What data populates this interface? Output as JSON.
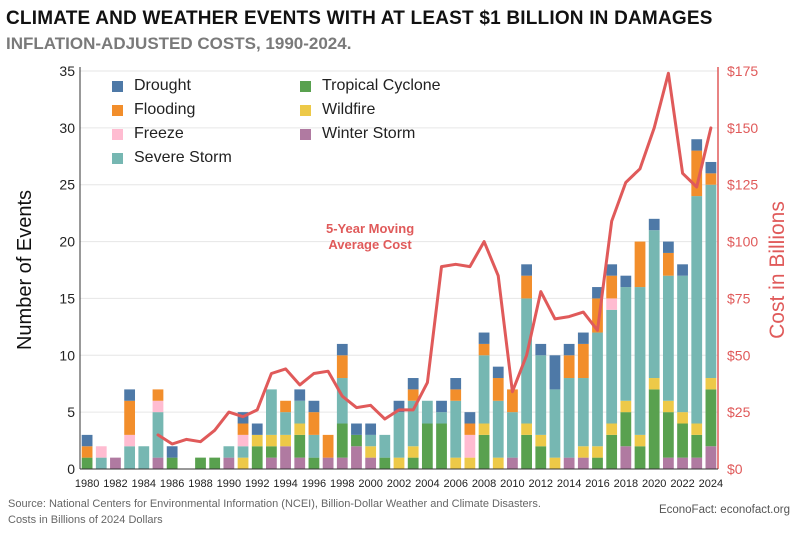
{
  "title": "CLIMATE AND WEATHER EVENTS WITH AT LEAST $1 BILLION IN DAMAGES",
  "subtitle": "INFLATION-ADJUSTED COSTS, 1990-2024.",
  "source_line1": "Source: National Centers for Environmental Information (NCEI), Billion-Dollar Weather and Climate Disasters.",
  "source_line2": "Costs in Billions of 2024 Dollars",
  "brand": "EconoFact:  econofact.org",
  "annotation_line1": "5-Year Moving",
  "annotation_line2": "Average Cost",
  "legend": [
    {
      "name": "Drought",
      "color": "#4e79a7"
    },
    {
      "name": "Tropical Cyclone",
      "color": "#59a14f"
    },
    {
      "name": "Flooding",
      "color": "#f28e2b"
    },
    {
      "name": "Wildfire",
      "color": "#edc948"
    },
    {
      "name": "Freeze",
      "color": "#ffbcd1"
    },
    {
      "name": "Winter Storm",
      "color": "#b07aa1"
    },
    {
      "name": "Severe Storm",
      "color": "#76b7b2"
    }
  ],
  "chart_data": {
    "type": "bar",
    "stacked": true,
    "x": [
      1980,
      1981,
      1982,
      1983,
      1984,
      1985,
      1986,
      1987,
      1988,
      1989,
      1990,
      1991,
      1992,
      1993,
      1994,
      1995,
      1996,
      1997,
      1998,
      1999,
      2000,
      2001,
      2002,
      2003,
      2004,
      2005,
      2006,
      2007,
      2008,
      2009,
      2010,
      2011,
      2012,
      2013,
      2014,
      2015,
      2016,
      2017,
      2018,
      2019,
      2020,
      2021,
      2022,
      2023,
      2024
    ],
    "xticks": [
      "1980",
      "1982",
      "1984",
      "1986",
      "1988",
      "1990",
      "1992",
      "1994",
      "1996",
      "1998",
      "2000",
      "2002",
      "2004",
      "2006",
      "2008",
      "2010",
      "2012",
      "2014",
      "2016",
      "2018",
      "2020",
      "2022",
      "2024"
    ],
    "ylabel": "Number of Events",
    "ylim": [
      0,
      35
    ],
    "yticks": [
      "0",
      "5",
      "10",
      "15",
      "20",
      "25",
      "30",
      "35"
    ],
    "y2label": "Cost in Billions",
    "y2lim": [
      0,
      175
    ],
    "y2ticks": [
      "$0",
      "$25",
      "$50",
      "$75",
      "$100",
      "$125",
      "$150",
      "$175"
    ],
    "series": [
      {
        "name": "Winter Storm",
        "color": "#b07aa1",
        "values": [
          0,
          0,
          1,
          0,
          0,
          1,
          0,
          0,
          0,
          0,
          1,
          0,
          0,
          1,
          2,
          1,
          0,
          1,
          1,
          2,
          1,
          0,
          0,
          0,
          0,
          0,
          0,
          0,
          0,
          0,
          1,
          0,
          0,
          0,
          1,
          1,
          0,
          0,
          2,
          0,
          0,
          1,
          1,
          1,
          2
        ]
      },
      {
        "name": "Tropical Cyclone",
        "color": "#59a14f",
        "values": [
          1,
          0,
          0,
          0,
          0,
          0,
          1,
          0,
          1,
          1,
          0,
          0,
          2,
          1,
          0,
          2,
          1,
          0,
          3,
          1,
          0,
          1,
          0,
          1,
          4,
          4,
          0,
          0,
          3,
          0,
          0,
          3,
          2,
          0,
          0,
          0,
          1,
          3,
          3,
          2,
          7,
          4,
          3,
          2,
          5
        ]
      },
      {
        "name": "Wildfire",
        "color": "#edc948",
        "values": [
          0,
          0,
          0,
          0,
          0,
          0,
          0,
          0,
          0,
          0,
          0,
          1,
          1,
          1,
          1,
          1,
          0,
          0,
          0,
          0,
          1,
          0,
          1,
          1,
          0,
          0,
          1,
          1,
          1,
          1,
          0,
          1,
          1,
          1,
          0,
          1,
          1,
          1,
          1,
          1,
          1,
          1,
          1,
          1,
          1
        ]
      },
      {
        "name": "Severe Storm",
        "color": "#76b7b2",
        "values": [
          0,
          1,
          0,
          2,
          2,
          4,
          0,
          0,
          0,
          0,
          1,
          1,
          0,
          4,
          2,
          2,
          2,
          0,
          4,
          0,
          1,
          2,
          4,
          4,
          2,
          1,
          5,
          0,
          6,
          5,
          4,
          11,
          7,
          6,
          7,
          6,
          10,
          10,
          10,
          13,
          13,
          11,
          12,
          20,
          17
        ]
      },
      {
        "name": "Freeze",
        "color": "#ffbcd1",
        "values": [
          0,
          1,
          0,
          1,
          0,
          1,
          0,
          0,
          0,
          0,
          0,
          1,
          0,
          0,
          0,
          0,
          0,
          0,
          0,
          0,
          0,
          0,
          0,
          0,
          0,
          0,
          0,
          2,
          0,
          0,
          0,
          0,
          0,
          0,
          0,
          0,
          0,
          1,
          0,
          0,
          0,
          0,
          0,
          0,
          0
        ]
      },
      {
        "name": "Flooding",
        "color": "#f28e2b",
        "values": [
          1,
          0,
          0,
          3,
          0,
          1,
          0,
          0,
          0,
          0,
          0,
          1,
          0,
          0,
          1,
          0,
          2,
          2,
          2,
          0,
          0,
          0,
          0,
          1,
          0,
          0,
          1,
          1,
          1,
          2,
          2,
          2,
          0,
          0,
          2,
          3,
          3,
          2,
          0,
          4,
          0,
          2,
          0,
          4,
          1
        ]
      },
      {
        "name": "Drought",
        "color": "#4e79a7",
        "values": [
          1,
          0,
          0,
          1,
          0,
          0,
          1,
          0,
          0,
          0,
          0,
          1,
          1,
          0,
          0,
          1,
          1,
          0,
          1,
          1,
          1,
          0,
          1,
          1,
          0,
          1,
          1,
          1,
          1,
          1,
          0,
          1,
          1,
          3,
          1,
          1,
          1,
          1,
          1,
          0,
          1,
          1,
          1,
          1,
          1
        ]
      }
    ],
    "line": {
      "name": "5-Year Moving Average Cost",
      "color": "#e05a5a",
      "x": [
        1985,
        1986,
        1987,
        1988,
        1989,
        1990,
        1991,
        1992,
        1993,
        1994,
        1995,
        1996,
        1997,
        1998,
        1999,
        2000,
        2001,
        2002,
        2003,
        2004,
        2005,
        2006,
        2007,
        2008,
        2009,
        2010,
        2011,
        2012,
        2013,
        2014,
        2015,
        2016,
        2017,
        2018,
        2019,
        2020,
        2021,
        2022,
        2023,
        2024
      ],
      "values": [
        15,
        11,
        13,
        12,
        17,
        25,
        23,
        26,
        42,
        44,
        37,
        42,
        43,
        32,
        27,
        28,
        22,
        26,
        26,
        38,
        89,
        90,
        89,
        100,
        85,
        34,
        50,
        78,
        66,
        67,
        69,
        61,
        109,
        126,
        132,
        150,
        174,
        130,
        124,
        150
      ]
    },
    "grid": true,
    "legend_position": "top-left"
  }
}
